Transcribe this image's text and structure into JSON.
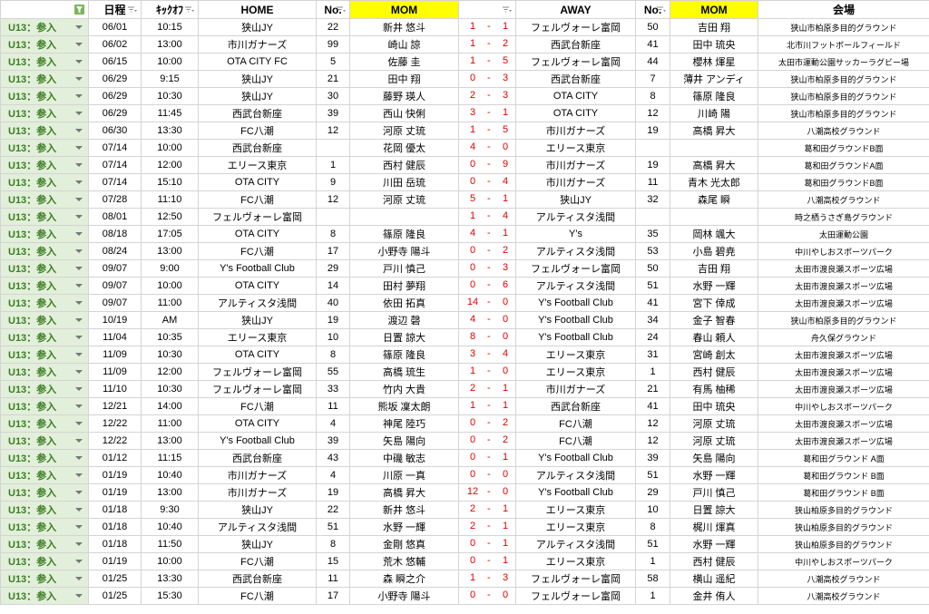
{
  "table": {
    "header": [
      "日程",
      "ｷｯｸｵﾌ",
      "HOME",
      "No.",
      "MOM",
      "AWAY",
      "No.",
      "MOM",
      "会場"
    ],
    "score_separator": "-",
    "rows": [
      {
        "category": "U13：参入",
        "date": "06/01",
        "time": "10:15",
        "home": "狭山JY",
        "home_no": 22,
        "home_mom": "新井 悠斗",
        "home_score": 1,
        "away_score": 1,
        "away": "フェルヴォーレ富岡",
        "away_no": 50,
        "away_mom": "吉田 翔",
        "venue": "狭山市柏原多目的グラウンド"
      },
      {
        "category": "U13：参入",
        "date": "06/02",
        "time": "13:00",
        "home": "市川ガナーズ",
        "home_no": 99,
        "home_mom": "崎山 諒",
        "home_score": 1,
        "away_score": 2,
        "away": "西武台新座",
        "away_no": 41,
        "away_mom": "田中 琉央",
        "venue": "北市川フットボールフィールド"
      },
      {
        "category": "U13：参入",
        "date": "06/15",
        "time": "10:00",
        "home": "OTA CITY FC",
        "home_no": 5,
        "home_mom": "佐藤 圭",
        "home_score": 1,
        "away_score": 5,
        "away": "フェルヴォーレ富岡",
        "away_no": 44,
        "away_mom": "櫻林 煇星",
        "venue": "太田市運動公園サッカーラグビー場"
      },
      {
        "category": "U13：参入",
        "date": "06/29",
        "time": "9:15",
        "home": "狭山JY",
        "home_no": 21,
        "home_mom": "田中 翔",
        "home_score": 0,
        "away_score": 3,
        "away": "西武台新座",
        "away_no": 7,
        "away_mom": "薄井 アンディ",
        "venue": "狭山市柏原多目的グラウンド"
      },
      {
        "category": "U13：参入",
        "date": "06/29",
        "time": "10:30",
        "home": "狭山JY",
        "home_no": 30,
        "home_mom": "藤野 瑛人",
        "home_score": 2,
        "away_score": 3,
        "away": "OTA CITY",
        "away_no": 8,
        "away_mom": "篠原 隆良",
        "venue": "狭山市柏原多目的グラウンド"
      },
      {
        "category": "U13：参入",
        "date": "06/29",
        "time": "11:45",
        "home": "西武台新座",
        "home_no": 39,
        "home_mom": "西山 快俐",
        "home_score": 3,
        "away_score": 1,
        "away": "OTA CITY",
        "away_no": 12,
        "away_mom": "川崎 陽",
        "venue": "狭山市柏原多目的グラウンド"
      },
      {
        "category": "U13：参入",
        "date": "06/30",
        "time": "13:30",
        "home": "FC八潮",
        "home_no": 12,
        "home_mom": "河原 丈琉",
        "home_score": 1,
        "away_score": 5,
        "away": "市川ガナーズ",
        "away_no": 19,
        "away_mom": "高橋 昇大",
        "venue": "八潮高校グラウンド"
      },
      {
        "category": "U13：参入",
        "date": "07/14",
        "time": "10:00",
        "home": "西武台新座",
        "home_no": null,
        "home_mom": "花岡 優太",
        "home_score": 4,
        "away_score": 0,
        "away": "エリース東京",
        "away_no": null,
        "away_mom": null,
        "venue": "葛和田グラウンドB面"
      },
      {
        "category": "U13：参入",
        "date": "07/14",
        "time": "12:00",
        "home": "エリース東京",
        "home_no": 1,
        "home_mom": "西村 健辰",
        "home_score": 0,
        "away_score": 9,
        "away": "市川ガナーズ",
        "away_no": 19,
        "away_mom": "高橋 昇大",
        "venue": "葛和田グラウンドA面"
      },
      {
        "category": "U13：参入",
        "date": "07/14",
        "time": "15:10",
        "home": "OTA CITY",
        "home_no": 9,
        "home_mom": "川田 岳琉",
        "home_score": 0,
        "away_score": 4,
        "away": "市川ガナーズ",
        "away_no": 11,
        "away_mom": "青木 光太郎",
        "venue": "葛和田グラウンドB面"
      },
      {
        "category": "U13：参入",
        "date": "07/28",
        "time": "11:10",
        "home": "FC八潮",
        "home_no": 12,
        "home_mom": "河原 丈琉",
        "home_score": 5,
        "away_score": 1,
        "away": "狭山JY",
        "away_no": 32,
        "away_mom": "森尾 瞬",
        "venue": "八潮高校グラウンド"
      },
      {
        "category": "U13：参入",
        "date": "08/01",
        "time": "12:50",
        "home": "フェルヴォーレ富岡",
        "home_no": null,
        "home_mom": null,
        "home_score": 1,
        "away_score": 4,
        "away": "アルティスタ浅間",
        "away_no": null,
        "away_mom": null,
        "venue": "時之栖うさぎ島グラウンド"
      },
      {
        "category": "U13：参入",
        "date": "08/18",
        "time": "17:05",
        "home": "OTA CITY",
        "home_no": 8,
        "home_mom": "篠原 隆良",
        "home_score": 4,
        "away_score": 1,
        "away": "Y’s",
        "away_no": 35,
        "away_mom": "岡林 颯大",
        "venue": "太田運動公園"
      },
      {
        "category": "U13：参入",
        "date": "08/24",
        "time": "13:00",
        "home": "FC八潮",
        "home_no": 17,
        "home_mom": "小野寺 陽斗",
        "home_score": 0,
        "away_score": 2,
        "away": "アルティスタ浅間",
        "away_no": 53,
        "away_mom": "小島 碧尭",
        "venue": "中川やしおスポーツパーク"
      },
      {
        "category": "U13：参入",
        "date": "09/07",
        "time": "9:00",
        "home": "Y's Football Club",
        "home_no": 29,
        "home_mom": "戸川 慎己",
        "home_score": 0,
        "away_score": 3,
        "away": "フェルヴォーレ富岡",
        "away_no": 50,
        "away_mom": "吉田 翔",
        "venue": "太田市渡良瀬スポーツ広場"
      },
      {
        "category": "U13：参入",
        "date": "09/07",
        "time": "10:00",
        "home": "OTA CITY",
        "home_no": 14,
        "home_mom": "田村 夢翔",
        "home_score": 0,
        "away_score": 6,
        "away": "アルティスタ浅間",
        "away_no": 51,
        "away_mom": "水野 一輝",
        "venue": "太田市渡良瀬スポーツ広場"
      },
      {
        "category": "U13：参入",
        "date": "09/07",
        "time": "11:00",
        "home": "アルティスタ浅間",
        "home_no": 40,
        "home_mom": "依田 拓真",
        "home_score": 14,
        "away_score": 0,
        "away": "Y's Football Club",
        "away_no": 41,
        "away_mom": "宮下 倖成",
        "venue": "太田市渡良瀬スポーツ広場"
      },
      {
        "category": "U13：参入",
        "date": "10/19",
        "time": "AM",
        "home": "狭山JY",
        "home_no": 19,
        "home_mom": "渡辺 磬",
        "home_score": 4,
        "away_score": 0,
        "away": "Y's Football Club",
        "away_no": 34,
        "away_mom": "金子 智春",
        "venue": "狭山市柏原多目的グラウンド"
      },
      {
        "category": "U13：参入",
        "date": "11/04",
        "time": "10:35",
        "home": "エリース東京",
        "home_no": 10,
        "home_mom": "日置 諒大",
        "home_score": 8,
        "away_score": 0,
        "away": "Y's Football Club",
        "away_no": 24,
        "away_mom": "春山 頼人",
        "venue": "舟久保グラウンド"
      },
      {
        "category": "U13：参入",
        "date": "11/09",
        "time": "10:30",
        "home": "OTA CITY",
        "home_no": 8,
        "home_mom": "篠原 隆良",
        "home_score": 3,
        "away_score": 4,
        "away": "エリース東京",
        "away_no": 31,
        "away_mom": "宮崎 創太",
        "venue": "太田市渡良瀬スポーツ広場"
      },
      {
        "category": "U13：参入",
        "date": "11/09",
        "time": "12:00",
        "home": "フェルヴォーレ富岡",
        "home_no": 55,
        "home_mom": "高橋 琉生",
        "home_score": 1,
        "away_score": 0,
        "away": "エリース東京",
        "away_no": 1,
        "away_mom": "西村 健辰",
        "venue": "太田市渡良瀬スポーツ広場"
      },
      {
        "category": "U13：参入",
        "date": "11/10",
        "time": "10:30",
        "home": "フェルヴォーレ富岡",
        "home_no": 33,
        "home_mom": "竹内 大貴",
        "home_score": 2,
        "away_score": 1,
        "away": "市川ガナーズ",
        "away_no": 21,
        "away_mom": "有馬 柚稀",
        "venue": "太田市渡良瀬スポーツ広場"
      },
      {
        "category": "U13：参入",
        "date": "12/21",
        "time": "14:00",
        "home": "FC八潮",
        "home_no": 11,
        "home_mom": "熊坂 凜太朗",
        "home_score": 1,
        "away_score": 1,
        "away": "西武台新座",
        "away_no": 41,
        "away_mom": "田中 琉央",
        "venue": "中川やしおスポーツパーク"
      },
      {
        "category": "U13：参入",
        "date": "12/22",
        "time": "11:00",
        "home": "OTA CITY",
        "home_no": 4,
        "home_mom": "神尾 陸巧",
        "home_score": 0,
        "away_score": 2,
        "away": "FC八潮",
        "away_no": 12,
        "away_mom": "河原 丈琉",
        "venue": "太田市渡良瀬スポーツ広場"
      },
      {
        "category": "U13：参入",
        "date": "12/22",
        "time": "13:00",
        "home": "Y's Football Club",
        "home_no": 39,
        "home_mom": "矢島 陽向",
        "home_score": 0,
        "away_score": 2,
        "away": "FC八潮",
        "away_no": 12,
        "away_mom": "河原 丈琉",
        "venue": "太田市渡良瀬スポーツ広場"
      },
      {
        "category": "U13：参入",
        "date": "01/12",
        "time": "11:15",
        "home": "西武台新座",
        "home_no": 43,
        "home_mom": "中磯 敏志",
        "home_score": 0,
        "away_score": 1,
        "away": "Y's Football Club",
        "away_no": 39,
        "away_mom": "矢島 陽向",
        "venue": "葛和田グラウンド A面"
      },
      {
        "category": "U13：参入",
        "date": "01/19",
        "time": "10:40",
        "home": "市川ガナーズ",
        "home_no": 4,
        "home_mom": "川原 一真",
        "home_score": 0,
        "away_score": 0,
        "away": "アルティスタ浅間",
        "away_no": 51,
        "away_mom": "水野 一輝",
        "venue": "葛和田グラウンド B面"
      },
      {
        "category": "U13：参入",
        "date": "01/19",
        "time": "13:00",
        "home": "市川ガナーズ",
        "home_no": 19,
        "home_mom": "高橋 昇大",
        "home_score": 12,
        "away_score": 0,
        "away": "Y's Football Club",
        "away_no": 29,
        "away_mom": "戸川 慎己",
        "venue": "葛和田グラウンド B面"
      },
      {
        "category": "U13：参入",
        "date": "01/18",
        "time": "9:30",
        "home": "狭山JY",
        "home_no": 22,
        "home_mom": "新井 悠斗",
        "home_score": 2,
        "away_score": 1,
        "away": "エリース東京",
        "away_no": 10,
        "away_mom": "日置 諒大",
        "venue": "狭山柏原多目的グラウンド"
      },
      {
        "category": "U13：参入",
        "date": "01/18",
        "time": "10:40",
        "home": "アルティスタ浅間",
        "home_no": 51,
        "home_mom": "水野 一輝",
        "home_score": 2,
        "away_score": 1,
        "away": "エリース東京",
        "away_no": 8,
        "away_mom": "梶川 煇真",
        "venue": "狭山柏原多目的グラウンド"
      },
      {
        "category": "U13：参入",
        "date": "01/18",
        "time": "11:50",
        "home": "狭山JY",
        "home_no": 8,
        "home_mom": "金剛 悠真",
        "home_score": 0,
        "away_score": 1,
        "away": "アルティスタ浅間",
        "away_no": 51,
        "away_mom": "水野 一輝",
        "venue": "狭山柏原多目的グラウンド"
      },
      {
        "category": "U13：参入",
        "date": "01/19",
        "time": "10:00",
        "home": "FC八潮",
        "home_no": 15,
        "home_mom": "荒木 悠輔",
        "home_score": 0,
        "away_score": 1,
        "away": "エリース東京",
        "away_no": 1,
        "away_mom": "西村 健辰",
        "venue": "中川やしおスポーツパーク"
      },
      {
        "category": "U13：参入",
        "date": "01/25",
        "time": "13:30",
        "home": "西武台新座",
        "home_no": 11,
        "home_mom": "森 瞬之介",
        "home_score": 1,
        "away_score": 3,
        "away": "フェルヴォーレ富岡",
        "away_no": 58,
        "away_mom": "横山 遥紀",
        "venue": "八潮高校グラウンド"
      },
      {
        "category": "U13：参入",
        "date": "01/25",
        "time": "15:30",
        "home": "FC八潮",
        "home_no": 17,
        "home_mom": "小野寺 陽斗",
        "home_score": 0,
        "away_score": 0,
        "away": "フェルヴォーレ富岡",
        "away_no": 1,
        "away_mom": "金井 侑人",
        "venue": "八潮高校グラウンド"
      }
    ]
  }
}
